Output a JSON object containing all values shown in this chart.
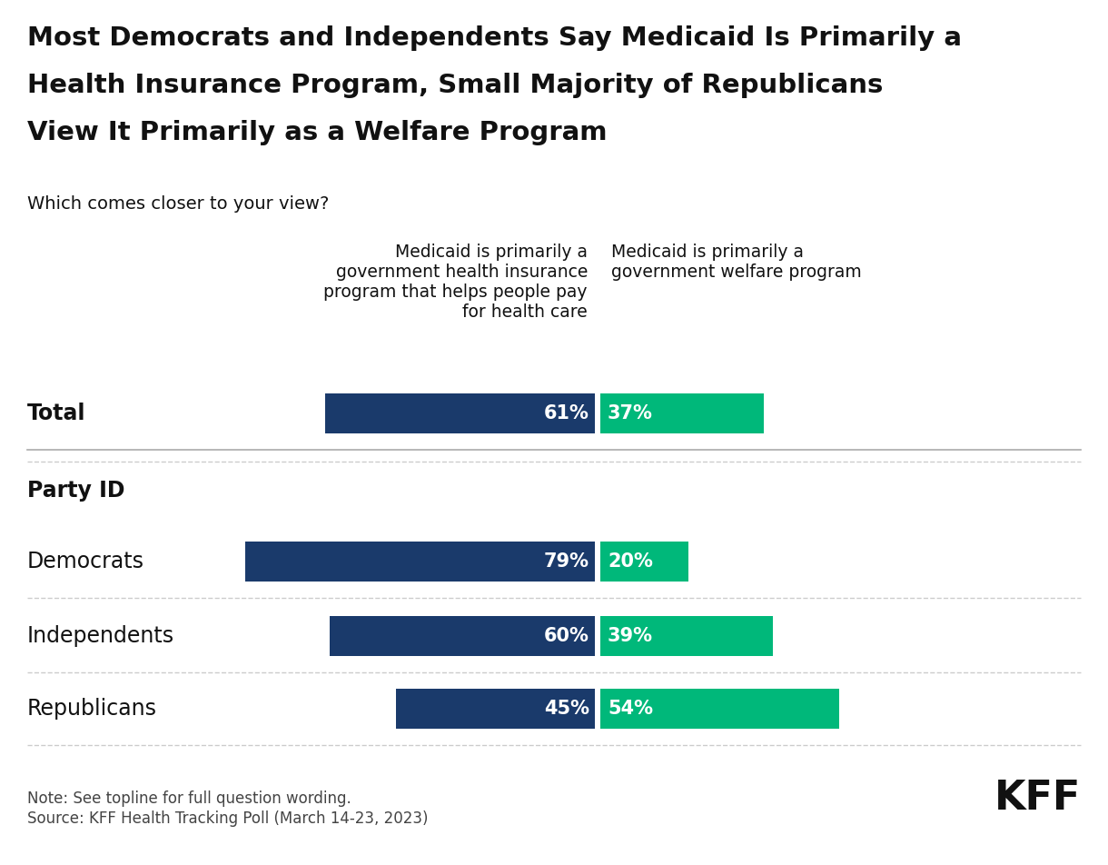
{
  "title_line1": "Most Democrats and Independents Say Medicaid Is Primarily a",
  "title_line2": "Health Insurance Program, Small Majority of Republicans",
  "title_line3": "View It Primarily as a Welfare Program",
  "subtitle": "Which comes closer to your view?",
  "col_header_left": "Medicaid is primarily a\ngovernment health insurance\nprogram that helps people pay\nfor health care",
  "col_header_right": "Medicaid is primarily a\ngovernment welfare program",
  "categories": [
    "Total",
    "Party ID",
    "Democrats",
    "Independents",
    "Republicans"
  ],
  "blue_values": [
    61,
    null,
    79,
    60,
    45
  ],
  "green_values": [
    37,
    null,
    20,
    39,
    54
  ],
  "blue_labels": [
    "61%",
    "",
    "79%",
    "60%",
    "45%"
  ],
  "green_labels": [
    "37%",
    "",
    "20%",
    "39%",
    "54%"
  ],
  "blue_color": "#1a3a6b",
  "green_color": "#00b87a",
  "note": "Note: See topline for full question wording.",
  "source": "Source: KFF Health Tracking Poll (March 14-23, 2023)",
  "kff_text": "KFF",
  "background_color": "#ffffff",
  "title_fontsize": 21,
  "subtitle_fontsize": 14,
  "category_fontsize": 16,
  "bar_label_fontsize": 15,
  "col_header_fontsize": 13.5,
  "note_fontsize": 12,
  "kff_fontsize": 32
}
